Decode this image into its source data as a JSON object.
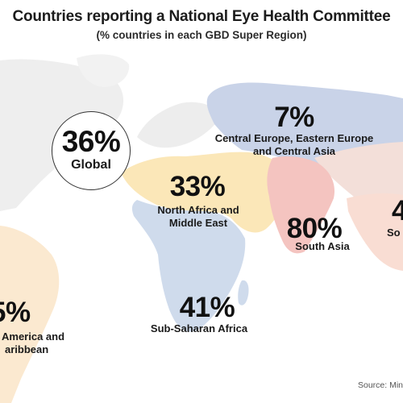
{
  "title": "Countries reporting a National Eye Health Committee",
  "subtitle": "(% countries in each GBD Super Region)",
  "global": {
    "value": "36%",
    "label": "Global"
  },
  "regions": [
    {
      "id": "ceeca",
      "value": "7%",
      "label_lines": [
        "Central Europe, Eastern Europe",
        "and Central Asia"
      ],
      "color": "#c9d3e8"
    },
    {
      "id": "nafme",
      "value": "33%",
      "label_lines": [
        "North Africa and",
        "Middle East"
      ],
      "color": "#fbe7b8"
    },
    {
      "id": "south-asia",
      "value": "80%",
      "label_lines": [
        "South Asia"
      ],
      "color": "#f4c4c0"
    },
    {
      "id": "ssa",
      "value": "41%",
      "label_lines": [
        "Sub-Saharan Africa"
      ],
      "color": "#cfdbec"
    },
    {
      "id": "lac",
      "value": "5%",
      "label_lines": [
        "America and",
        "aribbean"
      ],
      "color": "#fbe9d0"
    },
    {
      "id": "seao",
      "value": "4",
      "label_lines": [
        "So"
      ],
      "color": "#f9ddd3"
    }
  ],
  "source": "Source: Min"
}
